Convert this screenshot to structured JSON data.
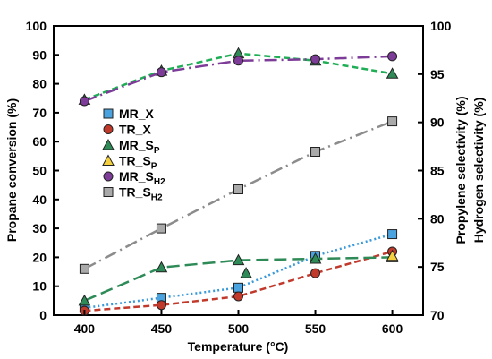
{
  "chart_data": {
    "type": "line",
    "xlabel": "Temperature (°C)",
    "ylabel_left": "Propane conversion (%)",
    "ylabel_right_1": "Propylene selectivity (%)",
    "ylabel_right_2": "Hydrogen selectivity (%)",
    "x": [
      400,
      450,
      500,
      550,
      600
    ],
    "xlim": [
      380,
      620
    ],
    "ylim_left": [
      0,
      100
    ],
    "ylim_right": [
      70,
      100
    ],
    "x_ticks": [
      "400",
      "450",
      "500",
      "550",
      "600"
    ],
    "y_ticks_left": [
      "0",
      "10",
      "20",
      "30",
      "40",
      "50",
      "60",
      "70",
      "80",
      "90",
      "100"
    ],
    "y_ticks_right": [
      "70",
      "75",
      "80",
      "85",
      "90",
      "95",
      "100"
    ],
    "grid": false,
    "legend_position": "left",
    "series": [
      {
        "key": "mr_x",
        "name": "MR_X",
        "sub": "",
        "axis": "left",
        "marker": "square",
        "color": "#3a9ad9",
        "line": "dotted",
        "x": [
          400,
          450,
          500,
          550,
          600
        ],
        "y": [
          2.5,
          6,
          9.5,
          20.5,
          28
        ]
      },
      {
        "key": "tr_x",
        "name": "TR_X",
        "sub": "",
        "axis": "left",
        "marker": "circle",
        "color": "#c0392b",
        "line": "dashed",
        "x": [
          400,
          450,
          500,
          550,
          600
        ],
        "y": [
          1.5,
          3.5,
          6.5,
          14.5,
          22
        ]
      },
      {
        "key": "mr_sp",
        "name": "MR_S",
        "sub": "P",
        "axis": "left",
        "marker": "triangle",
        "color": "#2e8b57",
        "line": "longdash",
        "x": [
          400,
          450,
          500,
          550,
          600
        ],
        "y": [
          5,
          16.5,
          19,
          19.5,
          20
        ]
      },
      {
        "key": "tr_sp",
        "name": "TR_S",
        "sub": "P",
        "axis": "left",
        "marker": "triangle",
        "color": "#1fae55",
        "line": "dashed",
        "x": [
          400,
          450,
          500,
          550,
          600
        ],
        "y": [
          74.5,
          84.5,
          90.5,
          88,
          83.5
        ]
      },
      {
        "key": "mr_sh2",
        "name": "MR_S",
        "sub": "H2",
        "axis": "left",
        "marker": "circle",
        "color": "#7d3c98",
        "line": "dashdot",
        "x": [
          400,
          450,
          500,
          550,
          600
        ],
        "y": [
          74,
          84,
          88,
          88.5,
          89.5
        ]
      },
      {
        "key": "tr_sh2",
        "name": "TR_S",
        "sub": "H2",
        "axis": "left",
        "marker": "square",
        "color": "#8c8c8c",
        "line": "dashdot",
        "x": [
          400,
          450,
          500,
          550,
          600
        ],
        "y": [
          16,
          30,
          43.5,
          56.5,
          67
        ]
      }
    ],
    "extra_points": [
      {
        "series": "mr_sp",
        "x": 505,
        "y": 14.5
      },
      {
        "series": "tr_sp_yellow",
        "x": 600,
        "y": 20.5
      }
    ],
    "marker_fills": {
      "mr_x": "#4aa3df",
      "tr_x": "#c0392b",
      "mr_sp": "#2e8b57",
      "tr_sp": "#2e8b57",
      "tr_sp_yellow": "#f4d03f",
      "mr_sh2": "#7d3c98",
      "tr_sh2": "#aaaaaa"
    }
  }
}
